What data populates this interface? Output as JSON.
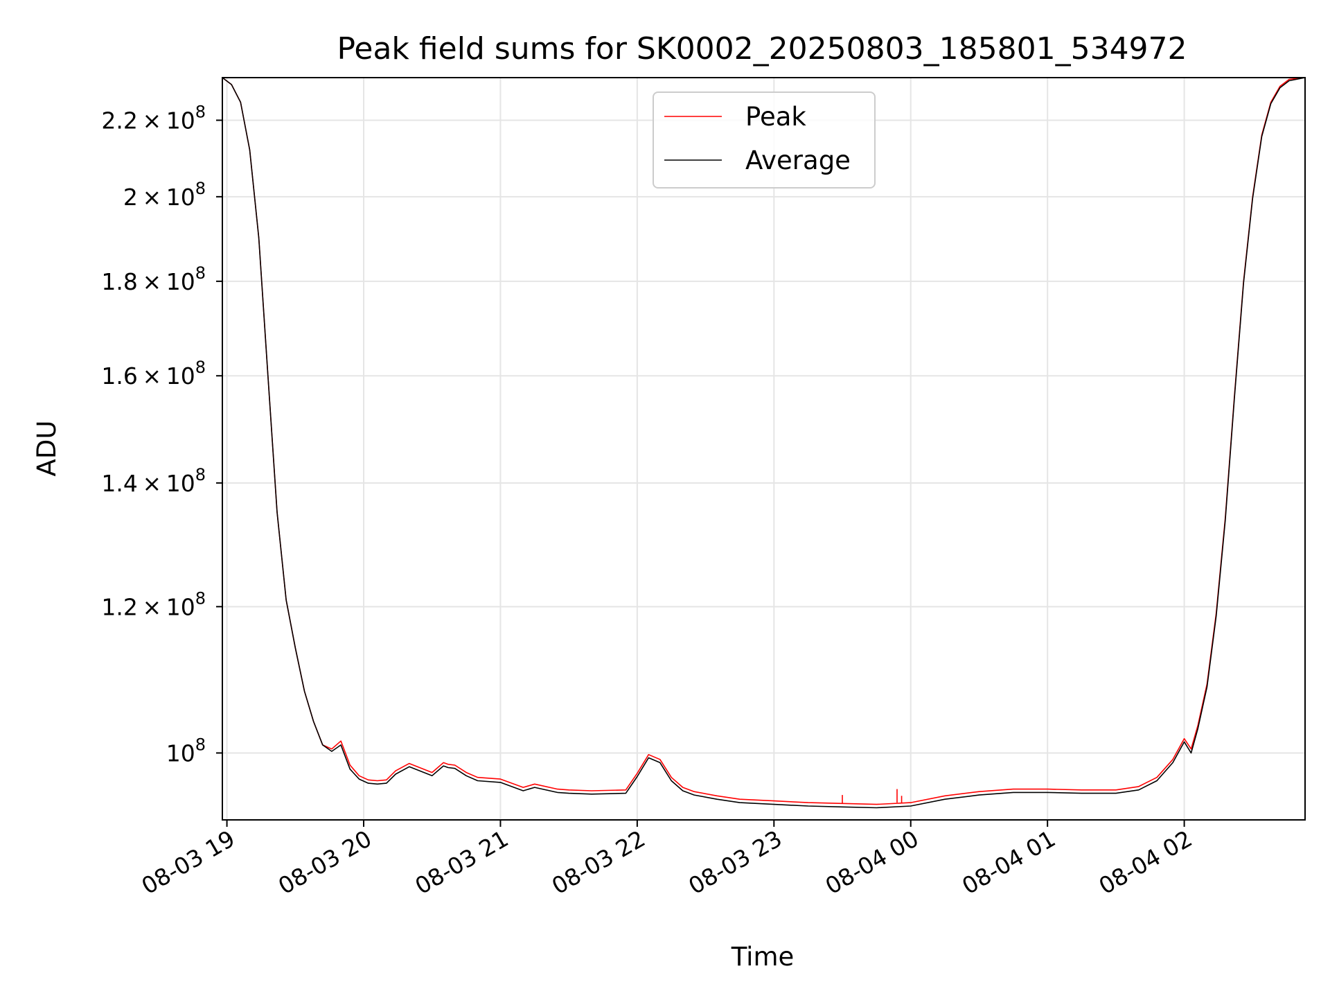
{
  "chart_data": {
    "type": "line",
    "title": "Peak field sums for SK0002_20250803_185801_534972",
    "xlabel": "Time",
    "ylabel": "ADU",
    "yscale": "log",
    "grid": true,
    "legend_position": "top-center",
    "xlim": [
      "2025-08-03 18:58",
      "2025-08-04 02:53"
    ],
    "ylim": [
      92000000,
      232000000
    ],
    "x_ticks": [
      "08-03 19",
      "08-03 20",
      "08-03 21",
      "08-03 22",
      "08-03 23",
      "08-04 00",
      "08-04 01",
      "08-04 02"
    ],
    "x_tick_values": [
      "2025-08-03 19:00",
      "2025-08-03 20:00",
      "2025-08-03 21:00",
      "2025-08-03 22:00",
      "2025-08-03 23:00",
      "2025-08-04 00:00",
      "2025-08-04 01:00",
      "2025-08-04 02:00"
    ],
    "y_ticks": [
      {
        "value": 100000000,
        "mant": "",
        "exp": "8"
      },
      {
        "value": 120000000,
        "mant": "1.2",
        "exp": "8"
      },
      {
        "value": 140000000,
        "mant": "1.4",
        "exp": "8"
      },
      {
        "value": 160000000,
        "mant": "1.6",
        "exp": "8"
      },
      {
        "value": 180000000,
        "mant": "1.8",
        "exp": "8"
      },
      {
        "value": 200000000,
        "mant": "2",
        "exp": "8"
      },
      {
        "value": 220000000,
        "mant": "2.2",
        "exp": "8"
      }
    ],
    "x": [
      "2025-08-03 18:58",
      "2025-08-03 19:02",
      "2025-08-03 19:06",
      "2025-08-03 19:10",
      "2025-08-03 19:14",
      "2025-08-03 19:18",
      "2025-08-03 19:22",
      "2025-08-03 19:26",
      "2025-08-03 19:30",
      "2025-08-03 19:34",
      "2025-08-03 19:38",
      "2025-08-03 19:42",
      "2025-08-03 19:46",
      "2025-08-03 19:50",
      "2025-08-03 19:54",
      "2025-08-03 19:58",
      "2025-08-03 20:02",
      "2025-08-03 20:06",
      "2025-08-03 20:10",
      "2025-08-03 20:14",
      "2025-08-03 20:20",
      "2025-08-03 20:30",
      "2025-08-03 20:35",
      "2025-08-03 20:37",
      "2025-08-03 20:40",
      "2025-08-03 20:45",
      "2025-08-03 20:50",
      "2025-08-03 21:00",
      "2025-08-03 21:10",
      "2025-08-03 21:15",
      "2025-08-03 21:25",
      "2025-08-03 21:30",
      "2025-08-03 21:40",
      "2025-08-03 21:55",
      "2025-08-03 22:00",
      "2025-08-03 22:05",
      "2025-08-03 22:10",
      "2025-08-03 22:15",
      "2025-08-03 22:20",
      "2025-08-03 22:25",
      "2025-08-03 22:35",
      "2025-08-03 22:45",
      "2025-08-03 23:00",
      "2025-08-03 23:15",
      "2025-08-03 23:30",
      "2025-08-03 23:45",
      "2025-08-04 00:00",
      "2025-08-04 00:15",
      "2025-08-04 00:30",
      "2025-08-04 00:45",
      "2025-08-04 01:00",
      "2025-08-04 01:15",
      "2025-08-04 01:30",
      "2025-08-04 01:40",
      "2025-08-04 01:48",
      "2025-08-04 01:55",
      "2025-08-04 02:00",
      "2025-08-04 02:03",
      "2025-08-04 02:06",
      "2025-08-04 02:10",
      "2025-08-04 02:14",
      "2025-08-04 02:18",
      "2025-08-04 02:22",
      "2025-08-04 02:26",
      "2025-08-04 02:30",
      "2025-08-04 02:34",
      "2025-08-04 02:38",
      "2025-08-04 02:42",
      "2025-08-04 02:46",
      "2025-08-04 02:53"
    ],
    "series": [
      {
        "name": "Peak",
        "color": "#ff0000",
        "values": [
          232000000,
          230000000,
          225000000,
          212000000,
          190000000,
          160000000,
          135000000,
          121000000,
          114000000,
          108000000,
          104000000,
          101000000,
          100500000,
          101500000,
          98500000,
          97200000,
          96700000,
          96600000,
          96700000,
          97800000,
          98700000,
          97600000,
          98800000,
          98600000,
          98500000,
          97600000,
          97000000,
          96800000,
          95800000,
          96200000,
          95600000,
          95500000,
          95400000,
          95500000,
          97500000,
          99800000,
          99200000,
          97000000,
          95800000,
          95300000,
          94800000,
          94400000,
          94200000,
          94000000,
          93900000,
          93800000,
          94000000,
          94800000,
          95300000,
          95600000,
          95600000,
          95500000,
          95500000,
          95900000,
          97000000,
          99200000,
          101800000,
          100500000,
          103500000,
          109000000,
          119000000,
          134000000,
          156000000,
          180000000,
          200000000,
          216000000,
          225000000,
          229500000,
          231500000,
          232000000
        ]
      },
      {
        "name": "Average",
        "color": "#000000",
        "values": [
          232000000,
          230000000,
          225000000,
          212000000,
          190000000,
          160000000,
          135000000,
          121000000,
          114000000,
          108000000,
          104000000,
          101000000,
          100200000,
          101000000,
          98000000,
          96800000,
          96300000,
          96200000,
          96300000,
          97400000,
          98300000,
          97200000,
          98400000,
          98200000,
          98100000,
          97200000,
          96600000,
          96400000,
          95400000,
          95800000,
          95200000,
          95100000,
          95000000,
          95100000,
          97100000,
          99400000,
          98800000,
          96600000,
          95400000,
          94900000,
          94400000,
          94000000,
          93800000,
          93600000,
          93500000,
          93400000,
          93600000,
          94400000,
          94900000,
          95200000,
          95200000,
          95100000,
          95100000,
          95500000,
          96600000,
          98800000,
          101400000,
          100000000,
          103100000,
          108600000,
          118600000,
          133600000,
          155600000,
          179600000,
          199600000,
          215600000,
          224600000,
          229100000,
          231100000,
          232000000
        ]
      }
    ],
    "annotations": [
      {
        "series": "Peak",
        "x": "2025-08-03 23:30",
        "value": 94900000
      },
      {
        "series": "Peak",
        "x": "2025-08-03 23:54",
        "value": 95600000
      },
      {
        "series": "Peak",
        "x": "2025-08-03 23:56",
        "value": 94800000
      }
    ]
  }
}
